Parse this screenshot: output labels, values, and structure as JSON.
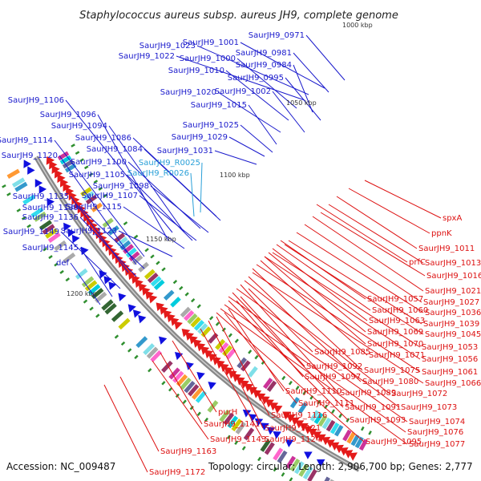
{
  "title": "Staphylococcus aureus subsp. aureus JH9, complete genome",
  "accession_text": "Accession: NC_009487",
  "summary_text": "Topology: circular; Length: 2,906,700 bp; Genes: 2,777",
  "kbp_markers": [
    "1000 kbp",
    "1050 kbp",
    "1100 kbp",
    "1150 kbp",
    "1200 kbp"
  ],
  "colors": {
    "forward_label": "#1a1acc",
    "rna_label": "#2aa0d8",
    "reverse_label": "#dd1111",
    "backbone": "#888888",
    "green_tick": "#2f8f2f"
  },
  "forward_labels": [
    "SaurJH9_0971",
    "SaurJH9_1001",
    "SaurJH9_1023",
    "SaurJH9_0981",
    "SaurJH9_1022",
    "SaurJH9_1000",
    "SaurJH9_0984",
    "SaurJH9_1010",
    "SaurJH9_0995",
    "SaurJH9_1020",
    "SaurJH9_1002",
    "SaurJH9_1106",
    "SaurJH9_1015",
    "SaurJH9_1096",
    "SaurJH9_1094",
    "SaurJH9_1025",
    "SaurJH9_1114",
    "SaurJH9_1086",
    "SaurJH9_1029",
    "SaurJH9_1084",
    "SaurJH9_1031",
    "SaurJH9_1120",
    "SaurJH9_1100",
    "SaurJH9_1105",
    "SaurJH9_1098",
    "SaurJH9_1135",
    "SaurJH9_1107",
    "SaurJH9_1139",
    "SaurJH9_1115",
    "SaurJH9_1136",
    "SaurJH9_1149",
    "SaurJH9_1123",
    "SaurJH9_1145",
    "def"
  ],
  "rna_labels": [
    "SaurJH9_R0025",
    "SaurJH9_R0026"
  ],
  "reverse_labels": [
    "spxA",
    "ppnK",
    "SaurJH9_1011",
    "prfC",
    "SaurJH9_1013",
    "SaurJH9_1016",
    "SaurJH9_1021",
    "SaurJH9_1057",
    "SaurJH9_1027",
    "SaurJH9_1060",
    "SaurJH9_1036",
    "SaurJH9_1063",
    "SaurJH9_1039",
    "SaurJH9_1069",
    "SaurJH9_1045",
    "SaurJH9_1070",
    "SaurJH9_1053",
    "SaurJH9_1085",
    "SaurJH9_1071",
    "SaurJH9_1056",
    "SaurJH9_1092",
    "SaurJH9_1075",
    "SaurJH9_1061",
    "SaurJH9_1097",
    "SaurJH9_1080",
    "SaurJH9_1066",
    "SaurJH9_1110",
    "SaurJH9_1089",
    "SaurJH9_1072",
    "SaurJH9_1111",
    "SaurJH9_1073",
    "SaurJH9_1116",
    "SaurJH9_1091",
    "purH",
    "SaurJH9_1093",
    "SaurJH9_1074",
    "SaurJH9_1141",
    "SaurJH9_1121",
    "SaurJH9_1076",
    "SaurJH9_1143",
    "SaurJH9_1124",
    "SaurJH9_1095",
    "SaurJH9_1077",
    "SaurJH9_1163",
    "SaurJH9_1172"
  ]
}
